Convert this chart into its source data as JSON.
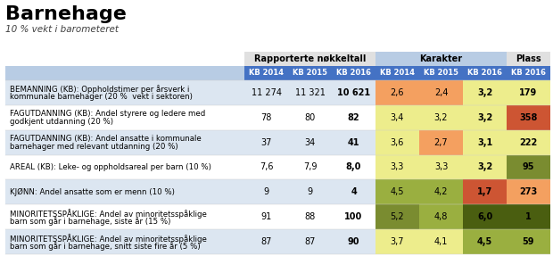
{
  "title": "Barnehage",
  "subtitle": "10 % vekt i barometeret",
  "header_group1": "Rapporterte nøkkeltall",
  "header_group2": "Karakter",
  "header_group3": "Plass",
  "col_headers": [
    "KB 2014",
    "KB 2015",
    "KB 2016",
    "KB 2014",
    "KB 2015",
    "KB 2016",
    "KB 2016"
  ],
  "rows": [
    {
      "label": "BEMANNING (KB): Oppholdstimer per årsverk i\nkommunale barnehager (20 %  vekt i sektoren)",
      "vals": [
        "11 274",
        "11 321",
        "10 621",
        "2,6",
        "2,4",
        "3,2",
        "179"
      ],
      "bold_vals": [
        false,
        false,
        true,
        false,
        false,
        true,
        true
      ],
      "cell_colors": [
        "#dce6f1",
        "#dce6f1",
        "#dce6f1",
        "#f4a060",
        "#f4a060",
        "#eded8c",
        "#eded8c"
      ],
      "row_bg": "#dce6f1"
    },
    {
      "label": "FAGUTDANNING (KB): Andel styrere og ledere med\ngodkjent utdanning (20 %)",
      "vals": [
        "78",
        "80",
        "82",
        "3,4",
        "3,2",
        "3,2",
        "358"
      ],
      "bold_vals": [
        false,
        false,
        true,
        false,
        false,
        true,
        true
      ],
      "cell_colors": [
        "#ffffff",
        "#ffffff",
        "#ffffff",
        "#eded8c",
        "#eded8c",
        "#eded8c",
        "#cd5533"
      ],
      "row_bg": "#ffffff"
    },
    {
      "label": "FAGUTDANNING (KB): Andel ansatte i kommunale\nbarnehager med relevant utdanning (20 %)",
      "vals": [
        "37",
        "34",
        "41",
        "3,6",
        "2,7",
        "3,1",
        "222"
      ],
      "bold_vals": [
        false,
        false,
        true,
        false,
        false,
        true,
        true
      ],
      "cell_colors": [
        "#dce6f1",
        "#dce6f1",
        "#dce6f1",
        "#eded8c",
        "#f4a060",
        "#eded8c",
        "#eded8c"
      ],
      "row_bg": "#dce6f1"
    },
    {
      "label": "AREAL (KB): Leke- og oppholdsareal per barn (10 %)",
      "vals": [
        "7,6",
        "7,9",
        "8,0",
        "3,3",
        "3,3",
        "3,2",
        "95"
      ],
      "bold_vals": [
        false,
        false,
        true,
        false,
        false,
        true,
        true
      ],
      "cell_colors": [
        "#ffffff",
        "#ffffff",
        "#ffffff",
        "#eded8c",
        "#eded8c",
        "#eded8c",
        "#7a8c30"
      ],
      "row_bg": "#ffffff"
    },
    {
      "label": "KJØNN: Andel ansatte som er menn (10 %)",
      "vals": [
        "9",
        "9",
        "4",
        "4,5",
        "4,2",
        "1,7",
        "273"
      ],
      "bold_vals": [
        false,
        false,
        true,
        false,
        false,
        true,
        true
      ],
      "cell_colors": [
        "#dce6f1",
        "#dce6f1",
        "#dce6f1",
        "#9aaf40",
        "#9aaf40",
        "#cd5533",
        "#f4a060"
      ],
      "row_bg": "#dce6f1"
    },
    {
      "label": "MINORITETSSPÅKLIGE: Andel av minoritetsspåklige\nbarn som går i barnehage, siste år (15 %)",
      "vals": [
        "91",
        "88",
        "100",
        "5,2",
        "4,8",
        "6,0",
        "1"
      ],
      "bold_vals": [
        false,
        false,
        true,
        false,
        false,
        true,
        true
      ],
      "cell_colors": [
        "#ffffff",
        "#ffffff",
        "#ffffff",
        "#7a8c30",
        "#9aaf40",
        "#4a5e10",
        "#4a5e10"
      ],
      "row_bg": "#ffffff"
    },
    {
      "label": "MINORITETSSPÅKLIGE: Andel av minoritetsspåklige\nbarn som går i barnehage, snitt siste fire år (5 %)",
      "vals": [
        "87",
        "87",
        "90",
        "3,7",
        "4,1",
        "4,5",
        "59"
      ],
      "bold_vals": [
        false,
        false,
        true,
        false,
        false,
        true,
        true
      ],
      "cell_colors": [
        "#dce6f1",
        "#dce6f1",
        "#dce6f1",
        "#eded8c",
        "#eded8c",
        "#9aaf40",
        "#9aaf40"
      ],
      "row_bg": "#dce6f1"
    }
  ],
  "header_blue": "#4472c4",
  "header_text_color": "#ffffff",
  "rapporterte_bg": "#e0e0e0",
  "karakter_bg": "#b8cce4",
  "plass_bg": "#e0e0e0",
  "label_col_bg_odd": "#dce6f1",
  "label_col_bg_even": "#ffffff",
  "title_color": "#000000",
  "subtitle_color": "#404040"
}
